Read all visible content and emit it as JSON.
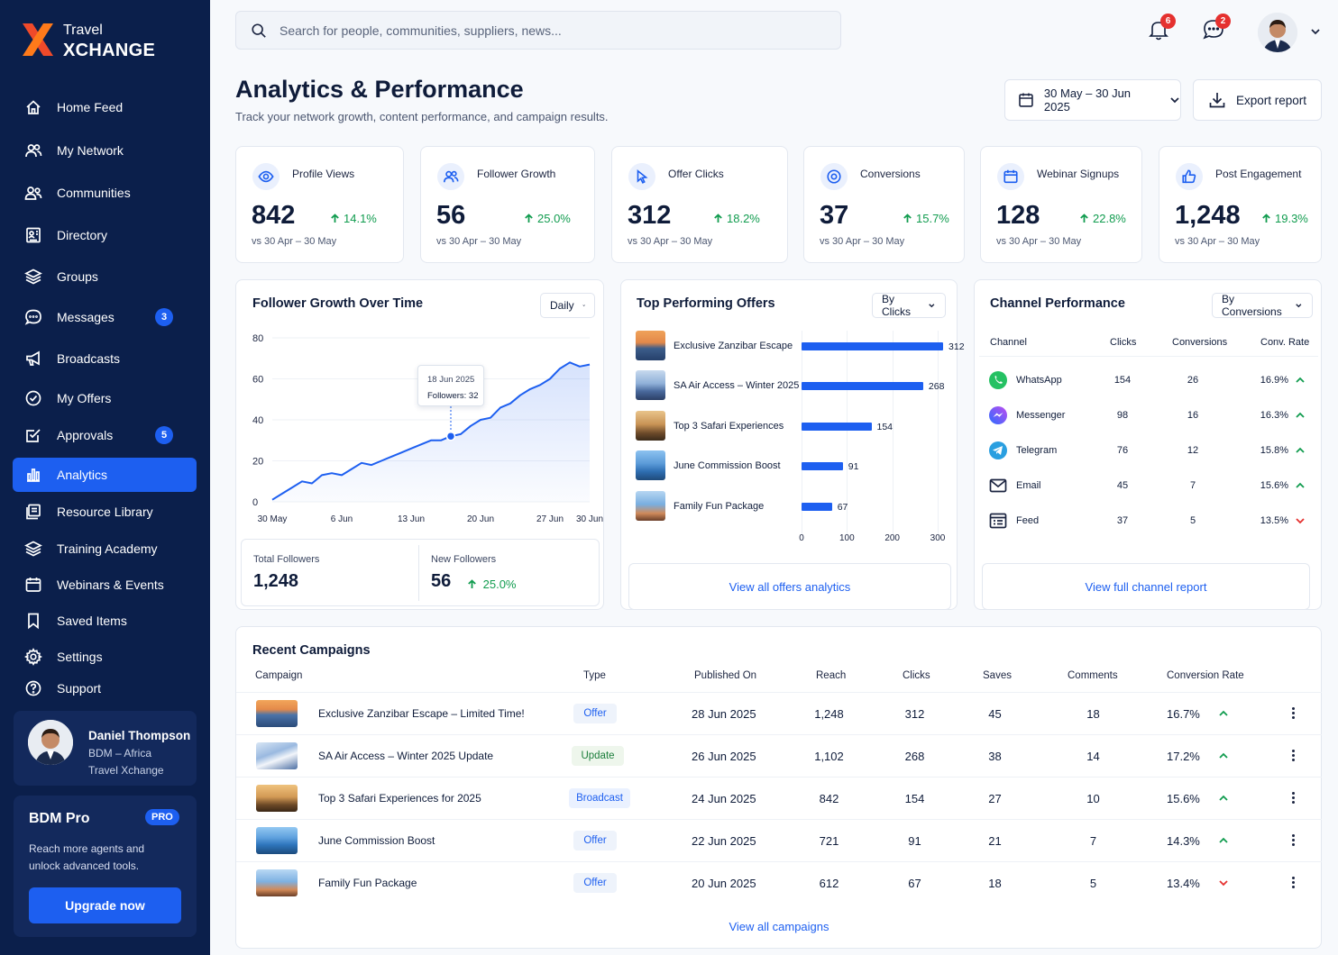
{
  "brand": {
    "line1": "Travel",
    "line2": "XCHANGE"
  },
  "search": {
    "placeholder": "Search for people, communities, suppliers, news..."
  },
  "notifications": {
    "count": "6"
  },
  "messages_top": {
    "count": "2"
  },
  "sidebar": {
    "items": [
      {
        "label": "Home Feed",
        "icon": "home-icon"
      },
      {
        "label": "My Network",
        "icon": "people-icon"
      },
      {
        "label": "Communities",
        "icon": "community-icon"
      },
      {
        "label": "Directory",
        "icon": "directory-icon"
      },
      {
        "label": "Groups",
        "icon": "layers-icon"
      },
      {
        "label": "Messages",
        "icon": "chat-icon",
        "badge": "3"
      },
      {
        "label": "Broadcasts",
        "icon": "megaphone-icon"
      },
      {
        "label": "My Offers",
        "icon": "check-circle-icon"
      },
      {
        "label": "Approvals",
        "icon": "check-square-icon",
        "badge": "5"
      },
      {
        "label": "Analytics",
        "icon": "bar-chart-icon",
        "active": true
      },
      {
        "label": "Resource Library",
        "icon": "library-icon"
      },
      {
        "label": "Training Academy",
        "icon": "layers-icon"
      },
      {
        "label": "Webinars & Events",
        "icon": "calendar-icon"
      },
      {
        "label": "Saved Items",
        "icon": "bookmark-icon"
      },
      {
        "label": "Settings",
        "icon": "gear-icon"
      },
      {
        "label": "Support",
        "icon": "help-icon"
      }
    ],
    "profile": {
      "name": "Daniel Thompson",
      "role": "BDM – Africa",
      "company": "Travel Xchange"
    },
    "pro": {
      "title": "BDM Pro",
      "badge": "PRO",
      "description": "Reach more agents and unlock advanced tools.",
      "button": "Upgrade now"
    }
  },
  "header": {
    "title": "Analytics & Performance",
    "subtitle": "Track your network growth, content performance, and campaign results.",
    "date_range": "30 May – 30 Jun 2025",
    "export": "Export report"
  },
  "stats": [
    {
      "label": "Profile Views",
      "value": "842",
      "change": "14.1%",
      "compare": "vs 30 Apr – 30 May",
      "icon": "eye-icon"
    },
    {
      "label": "Follower Growth",
      "value": "56",
      "change": "25.0%",
      "compare": "vs 30 Apr – 30 May",
      "icon": "people-icon"
    },
    {
      "label": "Offer Clicks",
      "value": "312",
      "change": "18.2%",
      "compare": "vs 30 Apr – 30 May",
      "icon": "cursor-icon"
    },
    {
      "label": "Conversions",
      "value": "37",
      "change": "15.7%",
      "compare": "vs 30 Apr – 30 May",
      "icon": "target-icon"
    },
    {
      "label": "Webinar Signups",
      "value": "128",
      "change": "22.8%",
      "compare": "vs 30 Apr – 30 May",
      "icon": "calendar-icon"
    },
    {
      "label": "Post Engagement",
      "value": "1,248",
      "change": "19.3%",
      "compare": "vs 30 Apr – 30 May",
      "icon": "thumbs-up-icon"
    }
  ],
  "follower_panel": {
    "title": "Follower Growth Over Time",
    "select": "Daily",
    "tooltip": {
      "date": "18 Jun 2025",
      "text": "Followers: 32"
    },
    "total_label": "Total Followers",
    "total_value": "1,248",
    "new_label": "New Followers",
    "new_value": "56",
    "new_change": "25.0%"
  },
  "offers_panel": {
    "title": "Top Performing Offers",
    "select": "By Clicks",
    "link": "View all offers analytics"
  },
  "channel_panel": {
    "title": "Channel Performance",
    "select": "By Conversions",
    "headers": [
      "Channel",
      "Clicks",
      "Conversions",
      "Conv. Rate"
    ],
    "rows": [
      {
        "name": "WhatsApp",
        "clicks": "154",
        "conversions": "26",
        "rate": "16.9%",
        "trend": "up"
      },
      {
        "name": "Messenger",
        "clicks": "98",
        "conversions": "16",
        "rate": "16.3%",
        "trend": "up"
      },
      {
        "name": "Telegram",
        "clicks": "76",
        "conversions": "12",
        "rate": "15.8%",
        "trend": "up"
      },
      {
        "name": "Email",
        "clicks": "45",
        "conversions": "7",
        "rate": "15.6%",
        "trend": "up"
      },
      {
        "name": "Feed",
        "clicks": "37",
        "conversions": "5",
        "rate": "13.5%",
        "trend": "down"
      }
    ],
    "link": "View full channel report"
  },
  "campaigns": {
    "title": "Recent Campaigns",
    "headers": [
      "Campaign",
      "Type",
      "Published On",
      "Reach",
      "Clicks",
      "Saves",
      "Comments",
      "Conversion Rate"
    ],
    "rows": [
      {
        "name": "Exclusive Zanzibar Escape – Limited Time!",
        "type": "Offer",
        "date": "28 Jun 2025",
        "reach": "1,248",
        "clicks": "312",
        "saves": "45",
        "comments": "18",
        "rate": "16.7%",
        "trend": "up"
      },
      {
        "name": "SA Air Access – Winter 2025 Update",
        "type": "Update",
        "date": "26 Jun 2025",
        "reach": "1,102",
        "clicks": "268",
        "saves": "38",
        "comments": "14",
        "rate": "17.2%",
        "trend": "up"
      },
      {
        "name": "Top 3 Safari Experiences for 2025",
        "type": "Broadcast",
        "date": "24 Jun 2025",
        "reach": "842",
        "clicks": "154",
        "saves": "27",
        "comments": "10",
        "rate": "15.6%",
        "trend": "up"
      },
      {
        "name": "June Commission Boost",
        "type": "Offer",
        "date": "22 Jun 2025",
        "reach": "721",
        "clicks": "91",
        "saves": "21",
        "comments": "7",
        "rate": "14.3%",
        "trend": "up"
      },
      {
        "name": "Family Fun Package",
        "type": "Offer",
        "date": "20 Jun 2025",
        "reach": "612",
        "clicks": "67",
        "saves": "18",
        "comments": "5",
        "rate": "13.4%",
        "trend": "down"
      }
    ],
    "link": "View all campaigns"
  },
  "colors": {
    "accent": "#1d5ff0",
    "sidebar": "#0b1f4b",
    "positive": "#119c4f",
    "negative": "#e5312f"
  },
  "chart_data": [
    {
      "type": "area",
      "x_ticks": [
        "30 May",
        "6 Jun",
        "13 Jun",
        "20 Jun",
        "27 Jun",
        "30 Jun"
      ],
      "ylim": [
        0,
        80
      ],
      "y_ticks": [
        0,
        20,
        40,
        60,
        80
      ],
      "series": [
        {
          "values": [
            1,
            4,
            7,
            10,
            9,
            13,
            14,
            13,
            16,
            19,
            18,
            20,
            22,
            24,
            26,
            28,
            30,
            30,
            32,
            33,
            37,
            40,
            41,
            46,
            48,
            52,
            55,
            57,
            60,
            65,
            68,
            66,
            67
          ]
        }
      ],
      "highlight": {
        "date": "18 Jun 2025",
        "value": 32
      }
    },
    {
      "type": "bar",
      "orientation": "horizontal",
      "categories": [
        "Exclusive Zanzibar Escape",
        "SA Air Access – Winter 2025",
        "Top 3 Safari Experiences",
        "June Commission Boost",
        "Family Fun Package"
      ],
      "values": [
        312,
        268,
        154,
        91,
        67
      ],
      "xlim": [
        0,
        300
      ],
      "x_ticks": [
        0,
        100,
        200,
        300
      ]
    }
  ]
}
